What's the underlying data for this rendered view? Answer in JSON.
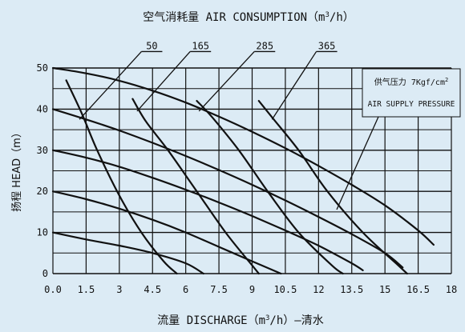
{
  "chart_data": {
    "type": "line",
    "title": "空气消耗量 AIR CONSUMPTION（m³/h）",
    "title_main": "空气消耗量 AIR CONSUMPTION（m",
    "title_sup": "3",
    "title_tail": "/h）",
    "xlabel": "流量 DISCHARGE（m³/h）—清水",
    "xlabel_main": "流量 DISCHARGE（m",
    "xlabel_sup": "3",
    "xlabel_tail": "/h）—清水",
    "ylabel": "扬程 HEAD（m）",
    "xlim": [
      0,
      18
    ],
    "ylim": [
      0,
      50
    ],
    "grid": true,
    "x_ticks": [
      0,
      1.5,
      3,
      4.5,
      6,
      7.5,
      9,
      10.5,
      12,
      13.5,
      15,
      16.5,
      18
    ],
    "x_tick_labels": [
      "0.0",
      "1.5",
      "3",
      "4.5",
      "6",
      "7.5",
      "9",
      "10.5",
      "12",
      "13.5",
      "15",
      "16.5",
      "18"
    ],
    "y_ticks": [
      0,
      10,
      20,
      30,
      40,
      50
    ],
    "y_tick_labels": [
      "0",
      "10",
      "20",
      "30",
      "40",
      "50"
    ],
    "supply_pressure": {
      "line1_main": "供气压力 7Kgf/cm",
      "line1_sup": "2",
      "line2": "AIR SUPPLY PRESSURE",
      "placement": "top-right"
    },
    "pressure_curves": [
      {
        "points": [
          [
            0,
            10
          ],
          [
            1.5,
            8.3
          ],
          [
            3,
            6.8
          ],
          [
            4.5,
            5
          ],
          [
            6,
            2.5
          ],
          [
            6.8,
            0
          ]
        ]
      },
      {
        "points": [
          [
            0,
            20
          ],
          [
            1.5,
            18.1
          ],
          [
            3,
            15.8
          ],
          [
            4.5,
            13.1
          ],
          [
            6,
            10
          ],
          [
            7.5,
            6.5
          ],
          [
            9,
            3
          ],
          [
            10.3,
            0
          ]
        ]
      },
      {
        "points": [
          [
            0,
            30
          ],
          [
            1.5,
            28.2
          ],
          [
            3,
            26
          ],
          [
            4.5,
            23.3
          ],
          [
            6,
            20.4
          ],
          [
            7.5,
            17.3
          ],
          [
            9,
            14
          ],
          [
            10.5,
            10.5
          ],
          [
            12,
            6.8
          ],
          [
            13.5,
            2.5
          ],
          [
            14,
            0.8
          ]
        ]
      },
      {
        "points": [
          [
            0,
            40
          ],
          [
            1.5,
            37.5
          ],
          [
            3,
            34.8
          ],
          [
            4.5,
            31.8
          ],
          [
            6,
            28.6
          ],
          [
            7.5,
            25.2
          ],
          [
            9,
            21.6
          ],
          [
            10.5,
            17.8
          ],
          [
            12,
            13.8
          ],
          [
            13.5,
            9.6
          ],
          [
            15,
            5
          ],
          [
            15.8,
            1.5
          ]
        ]
      },
      {
        "points": [
          [
            0,
            50
          ],
          [
            1.5,
            48.7
          ],
          [
            3,
            46.9
          ],
          [
            4.5,
            44.5
          ],
          [
            6,
            41.6
          ],
          [
            7.5,
            38.2
          ],
          [
            9,
            34.5
          ],
          [
            10.5,
            30.5
          ],
          [
            12,
            26.2
          ],
          [
            13.5,
            21.6
          ],
          [
            15,
            16.6
          ],
          [
            16.5,
            10.5
          ],
          [
            17.2,
            7
          ]
        ]
      }
    ],
    "air_consumption_curves": [
      {
        "label": "50",
        "points": [
          [
            0.6,
            47
          ],
          [
            1.3,
            39
          ],
          [
            2.0,
            30
          ],
          [
            3.0,
            19
          ],
          [
            4.0,
            10
          ],
          [
            5.0,
            3
          ],
          [
            5.6,
            0
          ]
        ]
      },
      {
        "label": "165",
        "points": [
          [
            3.6,
            42.5
          ],
          [
            4.2,
            37
          ],
          [
            5.2,
            30
          ],
          [
            6.5,
            20
          ],
          [
            7.8,
            10
          ],
          [
            9.0,
            2
          ],
          [
            9.3,
            0
          ]
        ]
      },
      {
        "label": "285",
        "points": [
          [
            6.5,
            42
          ],
          [
            7.2,
            38
          ],
          [
            8.4,
            30
          ],
          [
            9.7,
            20
          ],
          [
            11.1,
            10
          ],
          [
            12.6,
            2
          ],
          [
            13.1,
            0
          ]
        ]
      },
      {
        "label": "365",
        "points": [
          [
            9.3,
            42
          ],
          [
            9.9,
            38
          ],
          [
            11.1,
            30
          ],
          [
            12.4,
            20
          ],
          [
            14.0,
            10
          ],
          [
            15.6,
            2
          ],
          [
            16.0,
            0
          ]
        ]
      }
    ]
  }
}
